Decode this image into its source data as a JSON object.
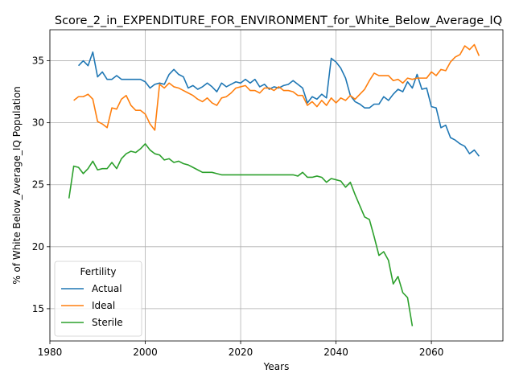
{
  "chart_data": {
    "type": "line",
    "title": "Score_2_in_EXPENDITURE_FOR_ENVIRONMENT_for_White_Below_Average_IQ",
    "xlabel": "Years",
    "ylabel": "% of White Below_Average_IQ Population",
    "xlim": [
      1980,
      2075
    ],
    "ylim": [
      12.4,
      37.5
    ],
    "xticks": [
      1980,
      2000,
      2020,
      2040,
      2060
    ],
    "yticks": [
      15,
      20,
      25,
      30,
      35
    ],
    "grid": true,
    "legend": {
      "title": "Fertility",
      "placement": "lower-left",
      "entries": [
        "Actual",
        "Ideal",
        "Sterile"
      ]
    },
    "series": [
      {
        "name": "Actual",
        "color": "#1f77b4",
        "x": [
          1986,
          1987,
          1988,
          1989,
          1990,
          1991,
          1992,
          1993,
          1994,
          1995,
          1996,
          1997,
          1998,
          1999,
          2000,
          2001,
          2002,
          2003,
          2004,
          2005,
          2006,
          2007,
          2008,
          2009,
          2010,
          2011,
          2012,
          2013,
          2014,
          2015,
          2016,
          2017,
          2018,
          2019,
          2020,
          2021,
          2022,
          2023,
          2024,
          2025,
          2026,
          2027,
          2028,
          2029,
          2030,
          2031,
          2032,
          2033,
          2034,
          2035,
          2036,
          2037,
          2038,
          2039,
          2040,
          2041,
          2042,
          2043,
          2044,
          2045,
          2046,
          2047,
          2048,
          2049,
          2050,
          2051,
          2052,
          2053,
          2054,
          2055,
          2056,
          2057,
          2058,
          2059,
          2060,
          2061,
          2062,
          2063,
          2064,
          2065,
          2066,
          2067,
          2068,
          2069,
          2070
        ],
        "values": [
          34.6,
          35.0,
          34.6,
          35.7,
          33.7,
          34.1,
          33.5,
          33.5,
          33.8,
          33.5,
          33.5,
          33.5,
          33.5,
          33.5,
          33.3,
          32.8,
          33.1,
          33.2,
          33.1,
          33.9,
          34.3,
          33.9,
          33.7,
          32.8,
          33.0,
          32.7,
          32.9,
          33.2,
          32.9,
          32.5,
          33.2,
          32.9,
          33.1,
          33.3,
          33.2,
          33.5,
          33.2,
          33.5,
          32.9,
          33.1,
          32.7,
          32.9,
          32.8,
          33.0,
          33.1,
          33.4,
          33.1,
          32.8,
          31.6,
          32.1,
          31.9,
          32.3,
          32.0,
          35.2,
          34.9,
          34.4,
          33.6,
          32.2,
          31.7,
          31.5,
          31.2,
          31.2,
          31.5,
          31.5,
          32.1,
          31.8,
          32.3,
          32.7,
          32.5,
          33.3,
          32.8,
          33.9,
          32.7,
          32.8,
          31.3,
          31.2,
          29.6,
          29.8,
          28.8,
          28.6,
          28.3,
          28.1,
          27.5,
          27.8,
          27.3
        ]
      },
      {
        "name": "Ideal",
        "color": "#ff7f0e",
        "x": [
          1985,
          1986,
          1987,
          1988,
          1989,
          1990,
          1991,
          1992,
          1993,
          1994,
          1995,
          1996,
          1997,
          1998,
          1999,
          2000,
          2001,
          2002,
          2003,
          2004,
          2005,
          2006,
          2007,
          2008,
          2009,
          2010,
          2011,
          2012,
          2013,
          2014,
          2015,
          2016,
          2017,
          2018,
          2019,
          2020,
          2021,
          2022,
          2023,
          2024,
          2025,
          2026,
          2027,
          2028,
          2029,
          2030,
          2031,
          2032,
          2033,
          2034,
          2035,
          2036,
          2037,
          2038,
          2039,
          2040,
          2041,
          2042,
          2043,
          2044,
          2045,
          2046,
          2047,
          2048,
          2049,
          2050,
          2051,
          2052,
          2053,
          2054,
          2055,
          2056,
          2057,
          2058,
          2059,
          2060,
          2061,
          2062,
          2063,
          2064,
          2065,
          2066,
          2067,
          2068,
          2069,
          2070
        ],
        "values": [
          31.8,
          32.1,
          32.1,
          32.3,
          31.9,
          30.1,
          29.9,
          29.6,
          31.2,
          31.1,
          31.9,
          32.2,
          31.4,
          31.0,
          31.0,
          30.7,
          29.9,
          29.4,
          33.1,
          32.8,
          33.2,
          32.9,
          32.8,
          32.6,
          32.4,
          32.2,
          31.9,
          31.7,
          32.0,
          31.6,
          31.4,
          32.0,
          32.1,
          32.4,
          32.8,
          32.9,
          33.0,
          32.6,
          32.6,
          32.4,
          32.8,
          32.8,
          32.6,
          32.9,
          32.6,
          32.6,
          32.5,
          32.2,
          32.2,
          31.4,
          31.7,
          31.3,
          31.8,
          31.4,
          32.0,
          31.6,
          32.0,
          31.8,
          32.2,
          31.9,
          32.3,
          32.7,
          33.4,
          34.0,
          33.8,
          33.8,
          33.8,
          33.4,
          33.5,
          33.2,
          33.6,
          33.5,
          33.6,
          33.6,
          33.6,
          34.1,
          33.8,
          34.3,
          34.2,
          34.9,
          35.3,
          35.5,
          36.2,
          35.9,
          36.3,
          35.4
        ]
      },
      {
        "name": "Sterile",
        "color": "#2ca02c",
        "x": [
          1984,
          1985,
          1986,
          1987,
          1988,
          1989,
          1990,
          1991,
          1992,
          1993,
          1994,
          1995,
          1996,
          1997,
          1998,
          1999,
          2000,
          2001,
          2002,
          2003,
          2004,
          2005,
          2006,
          2007,
          2008,
          2009,
          2010,
          2011,
          2012,
          2013,
          2014,
          2015,
          2016,
          2017,
          2018,
          2019,
          2020,
          2021,
          2022,
          2023,
          2024,
          2025,
          2026,
          2027,
          2028,
          2029,
          2030,
          2031,
          2032,
          2033,
          2034,
          2035,
          2036,
          2037,
          2038,
          2039,
          2040,
          2041,
          2042,
          2043,
          2044,
          2045,
          2046,
          2047,
          2048,
          2049,
          2050,
          2051,
          2052,
          2053,
          2054,
          2055,
          2056
        ],
        "values": [
          23.9,
          26.5,
          26.4,
          25.9,
          26.3,
          26.9,
          26.2,
          26.3,
          26.3,
          26.8,
          26.3,
          27.1,
          27.5,
          27.7,
          27.6,
          27.9,
          28.3,
          27.8,
          27.5,
          27.4,
          27.0,
          27.1,
          26.8,
          26.9,
          26.7,
          26.6,
          26.4,
          26.2,
          26.0,
          26.0,
          26.0,
          25.9,
          25.8,
          25.8,
          25.8,
          25.8,
          25.8,
          25.8,
          25.8,
          25.8,
          25.8,
          25.8,
          25.8,
          25.8,
          25.8,
          25.8,
          25.8,
          25.8,
          25.7,
          26.0,
          25.6,
          25.6,
          25.7,
          25.6,
          25.2,
          25.5,
          25.4,
          25.3,
          24.8,
          25.2,
          24.2,
          23.3,
          22.4,
          22.2,
          20.8,
          19.3,
          19.6,
          18.9,
          17.0,
          17.6,
          16.3,
          15.9,
          13.6
        ]
      }
    ]
  }
}
